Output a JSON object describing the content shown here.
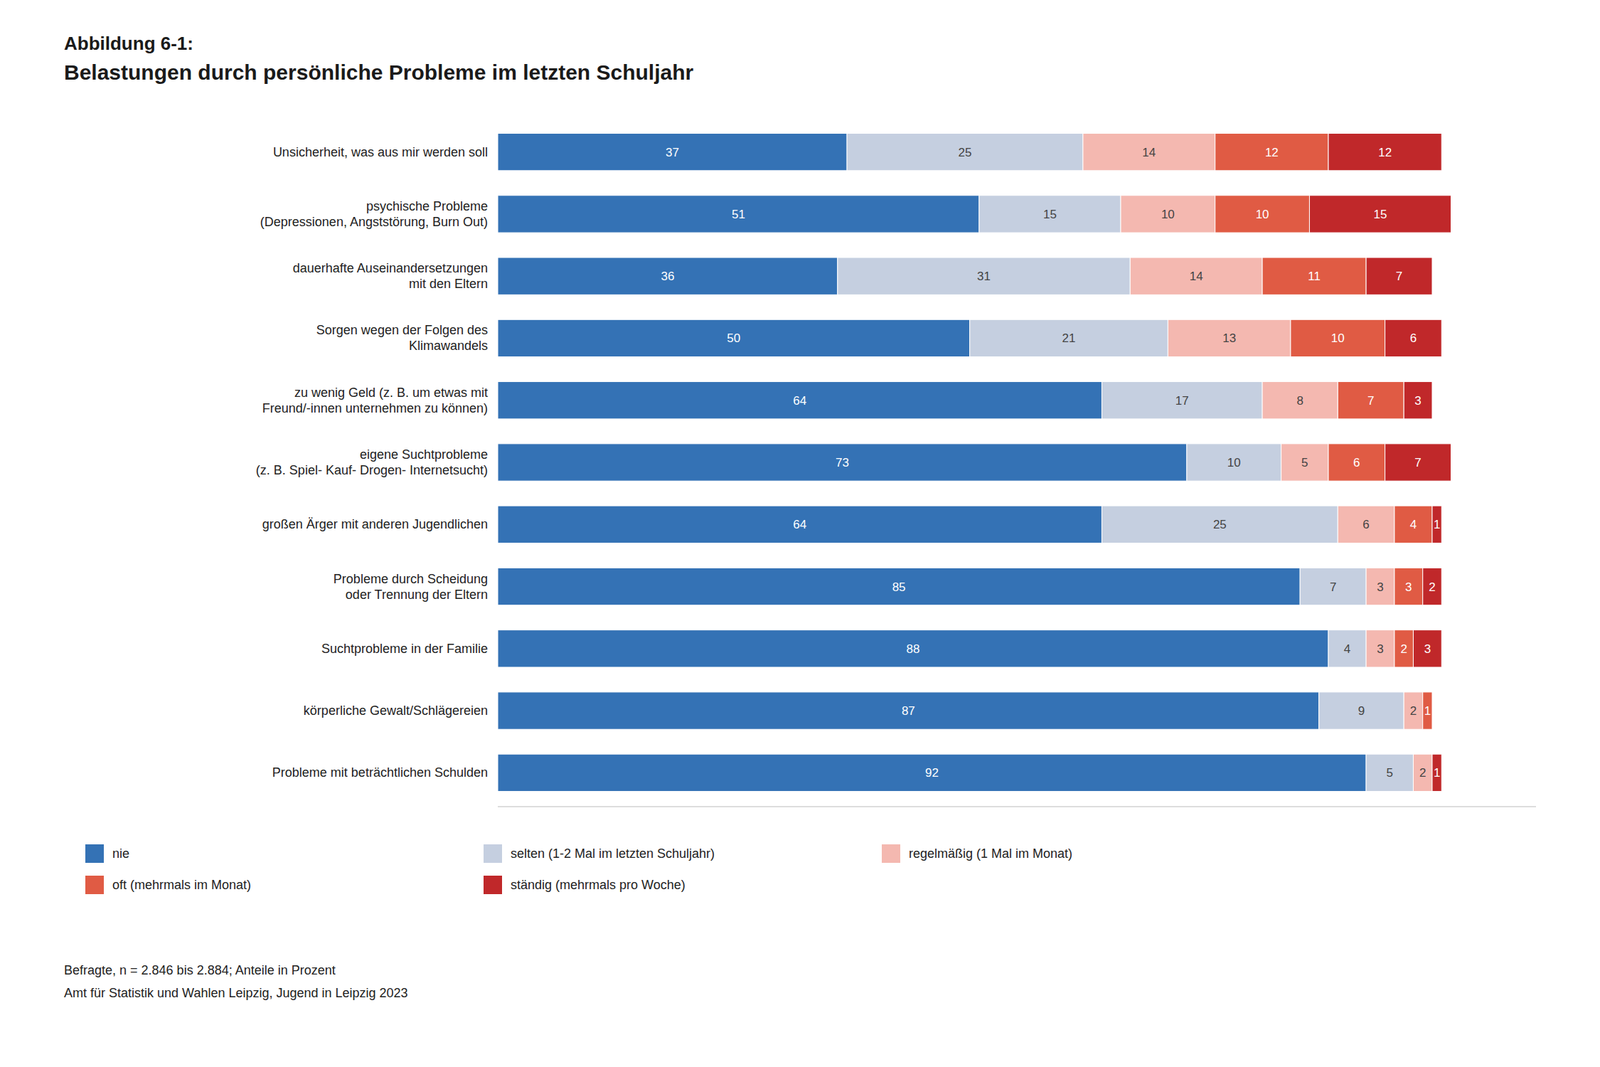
{
  "chart_data": {
    "type": "bar",
    "orientation": "horizontal",
    "stacked": true,
    "data_labels": true,
    "tick_labels": "y",
    "grid": false,
    "legend": "bottom",
    "title": "Abbildung 6-1:",
    "subtitle": "Belastungen durch persönliche Probleme im letzten Schuljahr",
    "annotations": [
      "Befragte, n = 2.846 bis 2.884; Anteile in Prozent",
      "Amt für Statistik und Wahlen Leipzig, Jugend in Leipzig 2023"
    ],
    "categories": [
      "Unsicherheit, was aus mir werden soll",
      "psychische Probleme\n(Depressionen, Angststörung, Burn Out)",
      "dauerhafte Auseinandersetzungen\nmit den Eltern",
      "Sorgen wegen der Folgen des\nKlimawandels",
      "zu wenig Geld (z. B. um etwas mit\nFreund/-innen unternehmen zu können)",
      "eigene Suchtprobleme\n(z. B. Spiel- Kauf- Drogen- Internetsucht)",
      "großen Ärger mit anderen Jugendlichen",
      "Probleme durch Scheidung\noder Trennung der Eltern",
      "Suchtprobleme in der Familie",
      "körperliche Gewalt/Schlägereien",
      "Probleme mit beträchtlichen Schulden"
    ],
    "series": [
      {
        "name": "nie",
        "color": "#3472b5",
        "values": [
          37,
          51,
          36,
          50,
          64,
          73,
          64,
          85,
          88,
          87,
          92
        ]
      },
      {
        "name": "selten (1-2 Mal im letzten Schuljahr)",
        "color": "#c5cfe0",
        "values": [
          25,
          15,
          31,
          21,
          17,
          10,
          25,
          7,
          4,
          9,
          5
        ]
      },
      {
        "name": "regelmäßig (1 Mal im Monat)",
        "color": "#f4b8b0",
        "values": [
          14,
          10,
          14,
          13,
          8,
          5,
          6,
          3,
          3,
          2,
          2
        ]
      },
      {
        "name": "oft (mehrmals im Monat)",
        "color": "#e05b44",
        "values": [
          12,
          10,
          11,
          10,
          7,
          6,
          4,
          3,
          2,
          1,
          0
        ]
      },
      {
        "name": "ständig (mehrmals pro Woche)",
        "color": "#c0282a",
        "values": [
          12,
          15,
          7,
          6,
          3,
          7,
          1,
          2,
          3,
          0,
          1
        ]
      }
    ],
    "xlim": [
      0,
      110
    ]
  }
}
